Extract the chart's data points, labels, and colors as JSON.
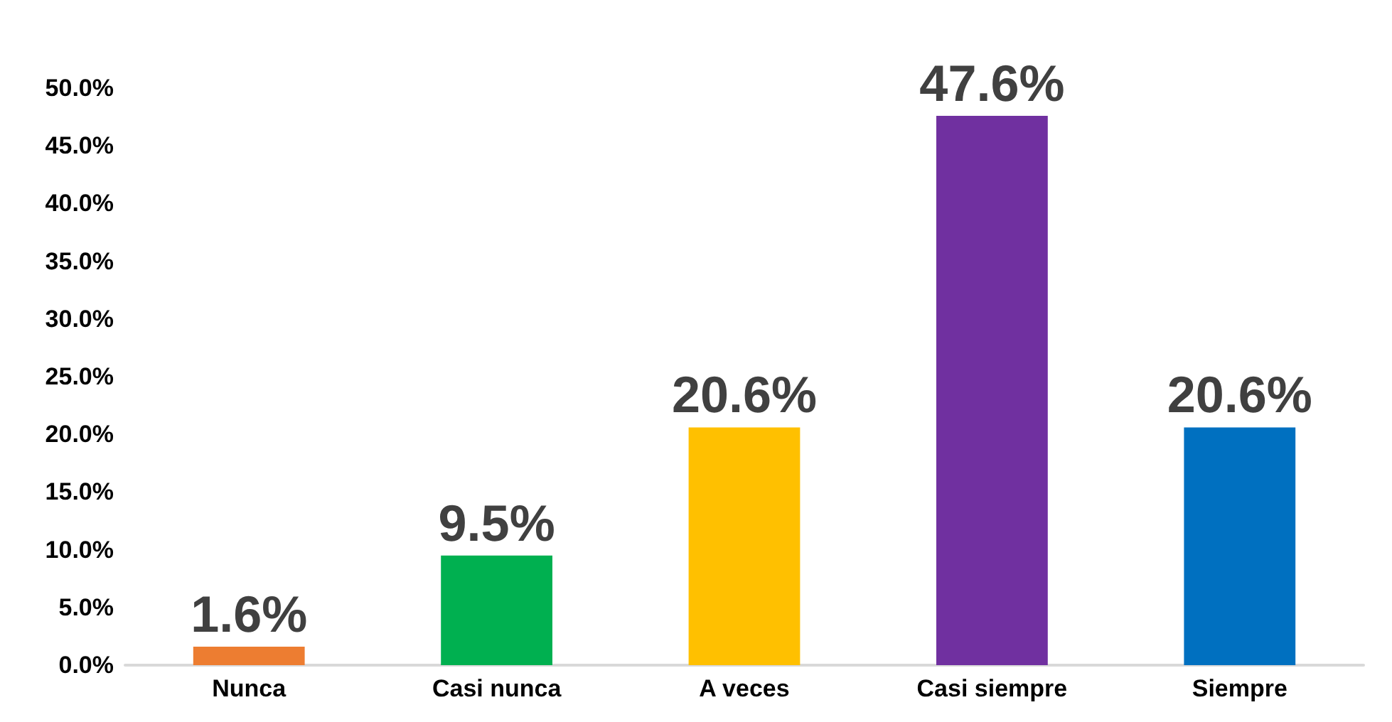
{
  "chart_data": {
    "type": "bar",
    "categories": [
      "Nunca",
      "Casi nunca",
      "A veces",
      "Casi siempre",
      "Siempre"
    ],
    "values": [
      1.6,
      9.5,
      20.6,
      47.6,
      20.6
    ],
    "value_labels": [
      "1.6%",
      "9.5%",
      "20.6%",
      "47.6%",
      "20.6%"
    ],
    "colors": [
      "#ed7d31",
      "#00b050",
      "#ffc000",
      "#7030a0",
      "#0070c0"
    ],
    "ylim": [
      0,
      50
    ],
    "yticks": [
      {
        "value": 0,
        "label": "0.0%"
      },
      {
        "value": 5,
        "label": "5.0%"
      },
      {
        "value": 10,
        "label": "10.0%"
      },
      {
        "value": 15,
        "label": "15.0%"
      },
      {
        "value": 20,
        "label": "20.0%"
      },
      {
        "value": 25,
        "label": "25.0%"
      },
      {
        "value": 30,
        "label": "30.0%"
      },
      {
        "value": 35,
        "label": "35.0%"
      },
      {
        "value": 40,
        "label": "40.0%"
      },
      {
        "value": 45,
        "label": "45.0%"
      },
      {
        "value": 50,
        "label": "50.0%"
      }
    ],
    "grid": false
  }
}
